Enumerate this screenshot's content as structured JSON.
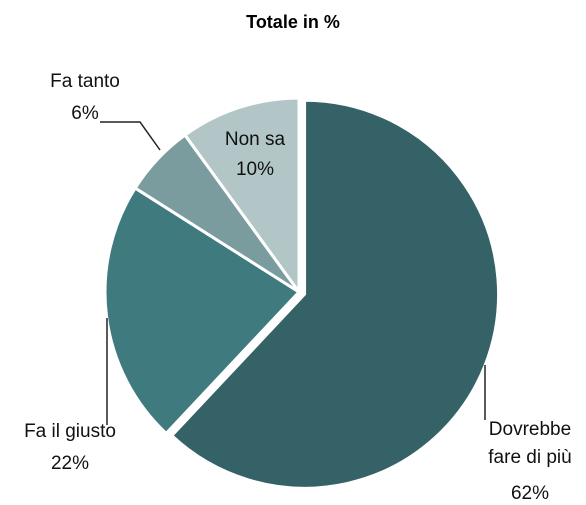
{
  "chart_data": {
    "type": "pie",
    "title": "Totale in %",
    "categories": [
      "Dovrebbe fare di più",
      "Fa il giusto",
      "Fa tanto",
      "Non sa"
    ],
    "values": [
      62,
      22,
      6,
      10
    ],
    "value_labels": [
      "62%",
      "22%",
      "6%",
      "10%"
    ],
    "colors": [
      "#346266",
      "#3f7a7e",
      "#7a9c9e",
      "#b3c6c7"
    ]
  }
}
